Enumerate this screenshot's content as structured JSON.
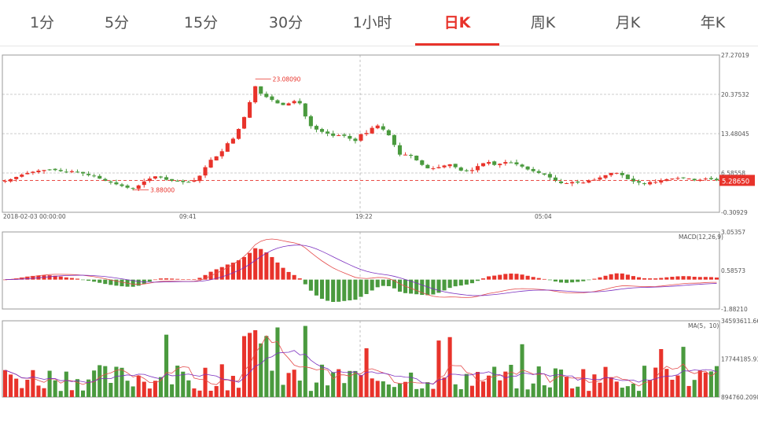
{
  "tabs": [
    {
      "label": "1分"
    },
    {
      "label": "5分"
    },
    {
      "label": "15分"
    },
    {
      "label": "30分"
    },
    {
      "label": "1小时"
    },
    {
      "label": "日K"
    },
    {
      "label": "周K"
    },
    {
      "label": "月K"
    },
    {
      "label": "年K"
    }
  ],
  "active_tab": "日K",
  "colors": {
    "up": "#e8332b",
    "down": "#4a9a3e",
    "accent": "#e8332b",
    "dif": "#e44b4b",
    "dea": "#7b2fbf"
  },
  "chart_data": {
    "type": "candlestick",
    "price_panel": {
      "y_ticks": [
        "27.27019",
        "20.37532",
        "13.48045",
        "6.58558",
        "-0.30929"
      ],
      "ylim": [
        -0.30929,
        27.27019
      ],
      "current_price": "5.28650",
      "high_label": "23.08090",
      "low_label": "3.88000",
      "x_ticks": [
        "2018-02-03 00:00:00",
        "09:41",
        "19:22",
        "05:04"
      ],
      "series": [
        5.2,
        5.5,
        5.9,
        6.3,
        6.6,
        6.8,
        7.0,
        7.1,
        7.2,
        7.1,
        6.9,
        6.8,
        6.9,
        6.8,
        6.5,
        6.2,
        6.0,
        5.6,
        5.2,
        4.9,
        4.6,
        4.3,
        4.0,
        3.9,
        4.4,
        5.1,
        5.6,
        6.0,
        5.8,
        5.4,
        5.2,
        5.1,
        5.0,
        5.0,
        5.3,
        6.1,
        7.6,
        8.9,
        9.5,
        10.4,
        11.8,
        12.6,
        14.3,
        16.4,
        19.0,
        21.8,
        20.5,
        19.9,
        19.4,
        18.8,
        18.5,
        18.8,
        19.2,
        18.8,
        16.5,
        14.8,
        14.2,
        13.8,
        13.5,
        13.1,
        13.2,
        13.1,
        12.6,
        12.2,
        13.4,
        13.6,
        14.5,
        14.9,
        14.2,
        13.2,
        11.5,
        9.8,
        9.8,
        9.6,
        8.8,
        8.0,
        7.4,
        7.4,
        7.6,
        7.9,
        8.1,
        7.6,
        7.0,
        6.9,
        7.1,
        7.8,
        8.3,
        8.5,
        8.0,
        8.2,
        8.5,
        8.4,
        8.1,
        7.7,
        7.2,
        6.9,
        6.6,
        6.3,
        5.8,
        5.2,
        4.8,
        4.8,
        5.0,
        4.9,
        4.9,
        5.3,
        5.4,
        5.8,
        6.2,
        6.6,
        6.6,
        6.2,
        5.5,
        5.1,
        4.9,
        4.7,
        5.0,
        5.0,
        5.3,
        5.5,
        5.6,
        5.7,
        5.7,
        5.6,
        5.3,
        5.4,
        5.6,
        5.5,
        5.3
      ]
    },
    "macd_panel": {
      "label": "MACD(12,26,9)",
      "y_ticks": [
        "3.05357",
        "0.58573",
        "-1.88210"
      ],
      "ylim": [
        -1.8821,
        3.05357
      ]
    },
    "volume_panel": {
      "label": "MA(5，10)",
      "y_ticks": [
        "34593611.66",
        "17744185.93",
        "894760.2098"
      ],
      "ylim": [
        894760.2098,
        34593611.66
      ]
    }
  }
}
